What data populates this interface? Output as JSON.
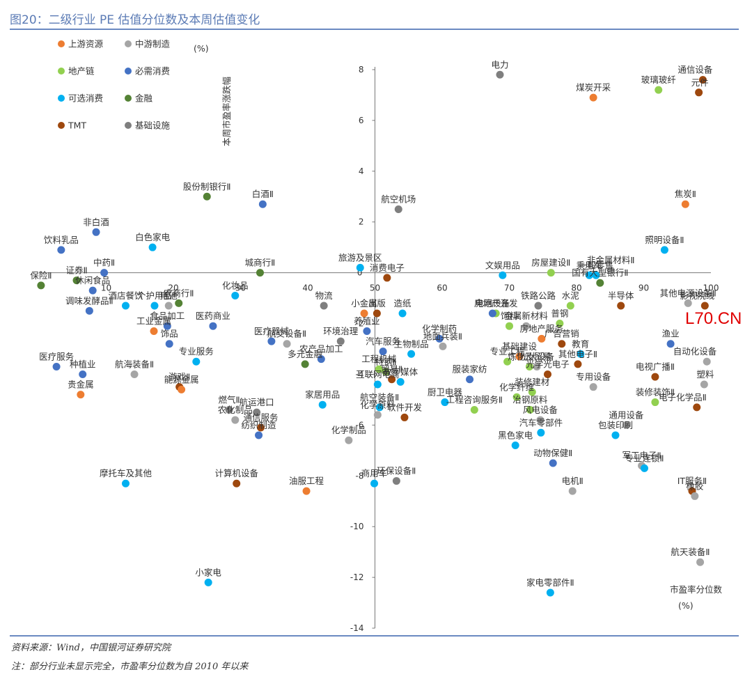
{
  "title": "图20：二级行业 PE 估值分位数及本周估值变化",
  "source": "资料来源：Wind，中国银河证券研究院",
  "note": "注：部分行业未显示完全，市盈率分位数为自 2010 年以来",
  "watermark": "L70.CN",
  "chart_data": {
    "type": "scatter",
    "xlabel": "市盈率分位数",
    "xunit": "(%)",
    "ylabel": "本周市盈率涨跌幅",
    "yunit": "(%)",
    "xlim": [
      0,
      100
    ],
    "ylim": [
      -14,
      8
    ],
    "xticks": [
      10,
      20,
      30,
      40,
      50,
      60,
      70,
      80,
      90,
      100
    ],
    "yticks": [
      8,
      6,
      4,
      2,
      0,
      -2,
      -4,
      -6,
      -8,
      -10,
      -12,
      -14
    ],
    "grid": false,
    "legend_position": "top-left",
    "groups": [
      {
        "name": "上游资源",
        "color": "#ed7d31"
      },
      {
        "name": "中游制造",
        "color": "#a5a5a5"
      },
      {
        "name": "地产链",
        "color": "#92d050"
      },
      {
        "name": "必需消费",
        "color": "#4472c4"
      },
      {
        "name": "可选消费",
        "color": "#00b0f0"
      },
      {
        "name": "金融",
        "color": "#548235"
      },
      {
        "name": "TMT",
        "color": "#9e480e"
      },
      {
        "name": "基础设施",
        "color": "#7f7f7f"
      }
    ],
    "points": [
      {
        "label": "通信设备",
        "x": 98.8,
        "y": 7.6,
        "g": 6
      },
      {
        "label": "电力",
        "x": 68.6,
        "y": 7.8,
        "g": 7
      },
      {
        "label": "煤炭开采",
        "x": 82.5,
        "y": 6.9,
        "g": 0
      },
      {
        "label": "玻璃玻纤",
        "x": 92.2,
        "y": 7.2,
        "g": 2
      },
      {
        "label": "元件",
        "x": 98.2,
        "y": 7.1,
        "g": 6
      },
      {
        "label": "股份制银行Ⅱ",
        "x": 25.0,
        "y": 3.0,
        "g": 5
      },
      {
        "label": "白酒Ⅱ",
        "x": 33.3,
        "y": 2.7,
        "g": 3
      },
      {
        "label": "航空机场",
        "x": 53.5,
        "y": 2.5,
        "g": 7
      },
      {
        "label": "焦炭Ⅱ",
        "x": 96.2,
        "y": 2.7,
        "g": 0
      },
      {
        "label": "非白酒",
        "x": 8.5,
        "y": 1.6,
        "g": 3
      },
      {
        "label": "饮料乳品",
        "x": 3.3,
        "y": 0.9,
        "g": 3
      },
      {
        "label": "白色家电",
        "x": 16.9,
        "y": 1.0,
        "g": 4
      },
      {
        "label": "照明设备Ⅱ",
        "x": 93.1,
        "y": 0.9,
        "g": 4
      },
      {
        "label": "旅游及景区",
        "x": 47.8,
        "y": 0.2,
        "g": 4
      },
      {
        "label": "中药Ⅱ",
        "x": 9.7,
        "y": 0.0,
        "g": 3
      },
      {
        "label": "城商行Ⅱ",
        "x": 32.9,
        "y": 0.0,
        "g": 5
      },
      {
        "label": "房屋建设Ⅱ",
        "x": 76.2,
        "y": 0.0,
        "g": 2
      },
      {
        "label": "乘用车",
        "x": 81.9,
        "y": -0.1,
        "g": 4
      },
      {
        "label": "非金属材料Ⅱ",
        "x": 85.1,
        "y": 0.1,
        "g": 1
      },
      {
        "label": "文娱用品",
        "x": 69.0,
        "y": -0.1,
        "g": 4
      },
      {
        "label": "消费电子",
        "x": 51.8,
        "y": -0.2,
        "g": 6
      },
      {
        "label": "一般零售",
        "x": 82.9,
        "y": -0.1,
        "g": 4
      },
      {
        "label": "国有大型银行Ⅱ",
        "x": 83.5,
        "y": -0.4,
        "g": 5
      },
      {
        "label": "保险Ⅱ",
        "x": 0.3,
        "y": -0.5,
        "g": 5
      },
      {
        "label": "证券Ⅱ",
        "x": 5.6,
        "y": -0.3,
        "g": 5
      },
      {
        "label": "休闲食品",
        "x": 8.0,
        "y": -0.7,
        "g": 3
      },
      {
        "label": "化妆品",
        "x": 29.2,
        "y": -0.9,
        "g": 4
      },
      {
        "label": "个护用品",
        "x": 17.2,
        "y": -1.3,
        "g": 4
      },
      {
        "label": "农商行Ⅱ",
        "x": 20.8,
        "y": -1.2,
        "g": 5
      },
      {
        "label": "电池",
        "x": 19.3,
        "y": -1.3,
        "g": 1
      },
      {
        "label": "酒店餐饮",
        "x": 12.9,
        "y": -1.3,
        "g": 4
      },
      {
        "label": "物流",
        "x": 42.4,
        "y": -1.3,
        "g": 7
      },
      {
        "label": "小金属",
        "x": 48.4,
        "y": -1.6,
        "g": 0
      },
      {
        "label": "出版",
        "x": 50.3,
        "y": -1.6,
        "g": 6
      },
      {
        "label": "造纸",
        "x": 54.1,
        "y": -1.6,
        "g": 4
      },
      {
        "label": "房地产开发",
        "x": 68.0,
        "y": -1.6,
        "g": 2
      },
      {
        "label": "铁路公路",
        "x": 74.3,
        "y": -1.3,
        "g": 7
      },
      {
        "label": "水泥",
        "x": 79.1,
        "y": -1.3,
        "g": 2
      },
      {
        "label": "半导体",
        "x": 86.6,
        "y": -1.3,
        "g": 6
      },
      {
        "label": "其他电源设备Ⅱ",
        "x": 96.6,
        "y": -1.2,
        "g": 1
      },
      {
        "label": "影视院线",
        "x": 99.1,
        "y": -1.3,
        "g": 6
      },
      {
        "label": "调味发酵品Ⅱ",
        "x": 7.5,
        "y": -1.5,
        "g": 3
      },
      {
        "label": "医药商业",
        "x": 25.9,
        "y": -2.1,
        "g": 3
      },
      {
        "label": "养殖业",
        "x": 48.8,
        "y": -2.3,
        "g": 3
      },
      {
        "label": "化学制药",
        "x": 59.6,
        "y": -2.6,
        "g": 3
      },
      {
        "label": "电网设备",
        "x": 67.5,
        "y": -1.6,
        "g": 3
      },
      {
        "label": "饲料",
        "x": 70.0,
        "y": -2.1,
        "g": 2
      },
      {
        "label": "金属新材料",
        "x": 72.5,
        "y": -2.1,
        "g": 1
      },
      {
        "label": "普钢",
        "x": 77.5,
        "y": -2.0,
        "g": 2
      },
      {
        "label": "医疗器械",
        "x": 34.6,
        "y": -2.7,
        "g": 3
      },
      {
        "label": "航交设备Ⅱ",
        "x": 36.9,
        "y": -2.8,
        "g": 1
      },
      {
        "label": "环境治理",
        "x": 44.9,
        "y": -2.7,
        "g": 7
      },
      {
        "label": "汽车服务",
        "x": 51.2,
        "y": -3.1,
        "g": 3
      },
      {
        "label": "地面兵装Ⅱ",
        "x": 60.1,
        "y": -2.9,
        "g": 1
      },
      {
        "label": "房地产服务",
        "x": 74.8,
        "y": -2.6,
        "g": 0
      },
      {
        "label": "广告营销",
        "x": 77.8,
        "y": -2.8,
        "g": 6
      },
      {
        "label": "渔业",
        "x": 94.0,
        "y": -2.8,
        "g": 3
      },
      {
        "label": "工业金属",
        "x": 17.1,
        "y": -2.3,
        "g": 0
      },
      {
        "label": "食品加工",
        "x": 19.1,
        "y": -2.1,
        "g": 3
      },
      {
        "label": "饰品",
        "x": 19.4,
        "y": -2.8,
        "g": 3
      },
      {
        "label": "生物制品",
        "x": 55.4,
        "y": -3.2,
        "g": 4
      },
      {
        "label": "基础建设",
        "x": 71.5,
        "y": -3.3,
        "g": 0
      },
      {
        "label": "教育",
        "x": 80.6,
        "y": -3.2,
        "g": 4
      },
      {
        "label": "自动化设备",
        "x": 99.4,
        "y": -3.5,
        "g": 1
      },
      {
        "label": "专业服务",
        "x": 23.4,
        "y": -3.5,
        "g": 4
      },
      {
        "label": "多元金融",
        "x": 39.6,
        "y": -3.6,
        "g": 5
      },
      {
        "label": "农产品加工",
        "x": 42.0,
        "y": -3.4,
        "g": 3
      },
      {
        "label": "特钢Ⅱ",
        "x": 51.6,
        "y": -3.9,
        "g": 2
      },
      {
        "label": "服装家纺",
        "x": 64.1,
        "y": -4.2,
        "g": 3
      },
      {
        "label": "专业工程",
        "x": 69.7,
        "y": -3.5,
        "g": 2
      },
      {
        "label": "炼化及贸易",
        "x": 73.0,
        "y": -3.7,
        "g": 2
      },
      {
        "label": "光伏设备",
        "x": 74.1,
        "y": -3.7,
        "g": 1
      },
      {
        "label": "光学光电子",
        "x": 75.7,
        "y": -4.0,
        "g": 6
      },
      {
        "label": "其他电子Ⅱ",
        "x": 80.2,
        "y": -3.6,
        "g": 6
      },
      {
        "label": "电视广播Ⅱ",
        "x": 91.7,
        "y": -4.1,
        "g": 6
      },
      {
        "label": "医疗服务",
        "x": 2.6,
        "y": -3.7,
        "g": 3
      },
      {
        "label": "种植业",
        "x": 6.5,
        "y": -4.0,
        "g": 3
      },
      {
        "label": "航海装备Ⅱ",
        "x": 14.2,
        "y": -4.0,
        "g": 1
      },
      {
        "label": "游戏Ⅱ",
        "x": 20.9,
        "y": -4.5,
        "g": 6
      },
      {
        "label": "能源金属",
        "x": 21.2,
        "y": -4.6,
        "g": 0
      },
      {
        "label": "贵金属",
        "x": 6.2,
        "y": -4.8,
        "g": 0
      },
      {
        "label": "工程机械",
        "x": 50.6,
        "y": -3.8,
        "g": 2
      },
      {
        "label": "贸易Ⅱ",
        "x": 52.5,
        "y": -4.2,
        "g": 6
      },
      {
        "label": "互联网电商",
        "x": 50.4,
        "y": -4.4,
        "g": 4
      },
      {
        "label": "数字媒体",
        "x": 53.8,
        "y": -4.3,
        "g": 4
      },
      {
        "label": "化学纤维",
        "x": 71.1,
        "y": -4.9,
        "g": 2
      },
      {
        "label": "装修建材",
        "x": 73.4,
        "y": -4.7,
        "g": 2
      },
      {
        "label": "专用设备",
        "x": 82.5,
        "y": -4.5,
        "g": 1
      },
      {
        "label": "塑料",
        "x": 99.0,
        "y": -4.4,
        "g": 1
      },
      {
        "label": "燃气Ⅱ",
        "x": 28.3,
        "y": -5.4,
        "g": 7
      },
      {
        "label": "航运港口",
        "x": 32.4,
        "y": -5.5,
        "g": 7
      },
      {
        "label": "家居用品",
        "x": 42.2,
        "y": -5.2,
        "g": 4
      },
      {
        "label": "航空装备Ⅱ",
        "x": 50.7,
        "y": -5.3,
        "g": 4
      },
      {
        "label": "厨卫电器",
        "x": 60.4,
        "y": -5.1,
        "g": 4
      },
      {
        "label": "冶钢原料",
        "x": 73.1,
        "y": -5.4,
        "g": 2
      },
      {
        "label": "装修装饰Ⅱ",
        "x": 91.7,
        "y": -5.1,
        "g": 2
      },
      {
        "label": "电子化学品Ⅱ",
        "x": 97.9,
        "y": -5.3,
        "g": 6
      },
      {
        "label": "农化制品",
        "x": 29.2,
        "y": -5.8,
        "g": 1
      },
      {
        "label": "化学原料",
        "x": 50.4,
        "y": -5.6,
        "g": 1
      },
      {
        "label": "软件开发",
        "x": 54.4,
        "y": -5.7,
        "g": 6
      },
      {
        "label": "工程咨询服务Ⅱ",
        "x": 64.8,
        "y": -5.4,
        "g": 2
      },
      {
        "label": "风电设备",
        "x": 74.6,
        "y": -5.8,
        "g": 1
      },
      {
        "label": "通信服务",
        "x": 33.0,
        "y": -6.1,
        "g": 6
      },
      {
        "label": "纺织制造",
        "x": 32.7,
        "y": -6.4,
        "g": 3
      },
      {
        "label": "通用设备",
        "x": 87.4,
        "y": -6.0,
        "g": 1
      },
      {
        "label": "化学制品",
        "x": 46.1,
        "y": -6.6,
        "g": 1
      },
      {
        "label": "汽车零部件",
        "x": 74.7,
        "y": -6.3,
        "g": 4
      },
      {
        "label": "包装印刷",
        "x": 85.8,
        "y": -6.4,
        "g": 4
      },
      {
        "label": "黑色家电",
        "x": 70.9,
        "y": -6.8,
        "g": 4
      },
      {
        "label": "动物保健Ⅱ",
        "x": 76.5,
        "y": -7.5,
        "g": 3
      },
      {
        "label": "军工电子Ⅱ",
        "x": 89.7,
        "y": -7.6,
        "g": 1
      },
      {
        "label": "专业连锁Ⅱ",
        "x": 90.1,
        "y": -7.7,
        "g": 4
      },
      {
        "label": "摩托车及其他",
        "x": 12.9,
        "y": -8.3,
        "g": 4
      },
      {
        "label": "计算机设备",
        "x": 29.4,
        "y": -8.3,
        "g": 6
      },
      {
        "label": "商用车",
        "x": 49.9,
        "y": -8.3,
        "g": 4
      },
      {
        "label": "环保设备Ⅱ",
        "x": 53.2,
        "y": -8.2,
        "g": 7
      },
      {
        "label": "油服工程",
        "x": 39.8,
        "y": -8.6,
        "g": 0
      },
      {
        "label": "电机Ⅱ",
        "x": 79.4,
        "y": -8.6,
        "g": 1
      },
      {
        "label": "IT服务Ⅱ",
        "x": 97.2,
        "y": -8.6,
        "g": 6
      },
      {
        "label": "橡胶",
        "x": 97.6,
        "y": -8.8,
        "g": 1
      },
      {
        "label": "航天装备Ⅱ",
        "x": 98.4,
        "y": -11.4,
        "g": 1
      },
      {
        "label": "小家电",
        "x": 25.2,
        "y": -12.2,
        "g": 4
      },
      {
        "label": "家电零部件Ⅱ",
        "x": 76.1,
        "y": -12.6,
        "g": 4
      }
    ]
  }
}
